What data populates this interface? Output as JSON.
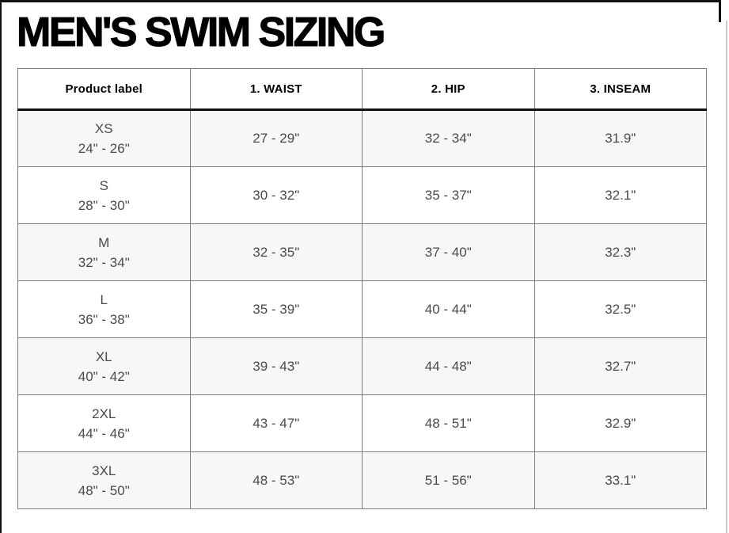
{
  "page": {
    "title": "MEN'S SWIM SIZING"
  },
  "colors": {
    "black_rule": "#111111",
    "table_border": "#7d7d7d",
    "alt_row_bg": "#f7f7f7",
    "cell_text": "#4a4a4a",
    "right_edge_line": "#c9c9c9"
  },
  "table": {
    "columns": [
      "Product label",
      "1. WAIST",
      "2. HIP",
      "3. INSEAM"
    ],
    "rows": [
      {
        "size": "XS",
        "range": "24\" - 26\"",
        "waist": "27 - 29\"",
        "hip": "32 - 34\"",
        "inseam": "31.9\""
      },
      {
        "size": "S",
        "range": "28\" - 30\"",
        "waist": "30 - 32\"",
        "hip": "35 - 37\"",
        "inseam": "32.1\""
      },
      {
        "size": "M",
        "range": "32\" - 34\"",
        "waist": "32 - 35\"",
        "hip": "37 - 40\"",
        "inseam": "32.3\""
      },
      {
        "size": "L",
        "range": "36\" - 38\"",
        "waist": "35 - 39\"",
        "hip": "40 - 44\"",
        "inseam": "32.5\""
      },
      {
        "size": "XL",
        "range": "40\" - 42\"",
        "waist": "39 - 43\"",
        "hip": "44 - 48\"",
        "inseam": "32.7\""
      },
      {
        "size": "2XL",
        "range": "44\" - 46\"",
        "waist": "43 - 47\"",
        "hip": "48 - 51\"",
        "inseam": "32.9\""
      },
      {
        "size": "3XL",
        "range": "48\" - 50\"",
        "waist": "48 - 53\"",
        "hip": "51 - 56\"",
        "inseam": "33.1\""
      }
    ]
  }
}
